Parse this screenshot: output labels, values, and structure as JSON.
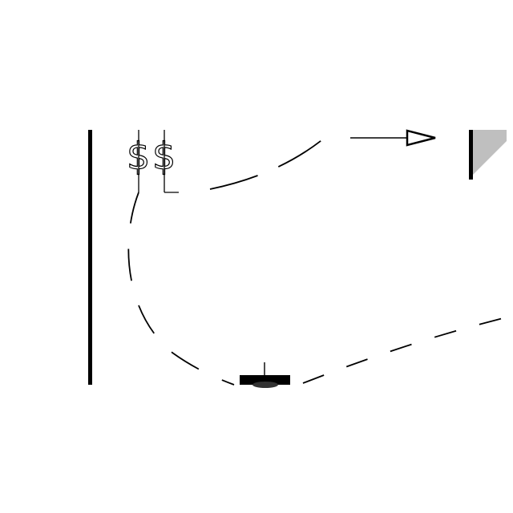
{
  "diagram": {
    "symbols": [
      {
        "id": "dollar-left",
        "text": "$"
      },
      {
        "id": "dollar-right",
        "text": "$"
      }
    ],
    "colors": {
      "stroke": "#000000",
      "fill_gray": "#bfbfbf",
      "background": "#ffffff"
    },
    "icons": [
      "arrow-head-icon",
      "gray-triangle-icon",
      "black-block-icon"
    ]
  }
}
